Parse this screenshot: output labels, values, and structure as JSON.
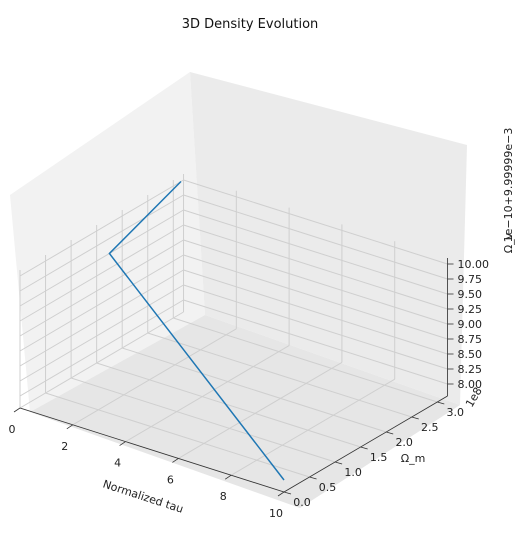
{
  "chart_data": {
    "type": "line3d",
    "title": "3D Density Evolution",
    "xlabel": "Normalized tau",
    "ylabel": "Ω_m",
    "zlabel": "Ω_v",
    "x_ticks": [
      "0",
      "2",
      "4",
      "6",
      "8",
      "10"
    ],
    "y_ticks": [
      "0.0",
      "0.5",
      "1.0",
      "1.5",
      "2.0",
      "2.5",
      "3.0"
    ],
    "z_ticks": [
      "8.00",
      "8.25",
      "8.50",
      "8.75",
      "9.00",
      "9.25",
      "9.50",
      "9.75",
      "10.00"
    ],
    "y_offset_text": "1e8",
    "z_offset_text": "1e−10+9.99999e−3",
    "xlim": [
      0,
      10
    ],
    "ylim": [
      0,
      3.2
    ],
    "zlim": [
      7.8,
      10.1
    ],
    "grid": true,
    "series": [
      {
        "color": "#1f77b4",
        "x": [
          0.0,
          0.0,
          10.0
        ],
        "y": [
          3.15,
          1.75,
          0.0
        ],
        "z": [
          10.0,
          9.5,
          8.0
        ]
      }
    ]
  }
}
